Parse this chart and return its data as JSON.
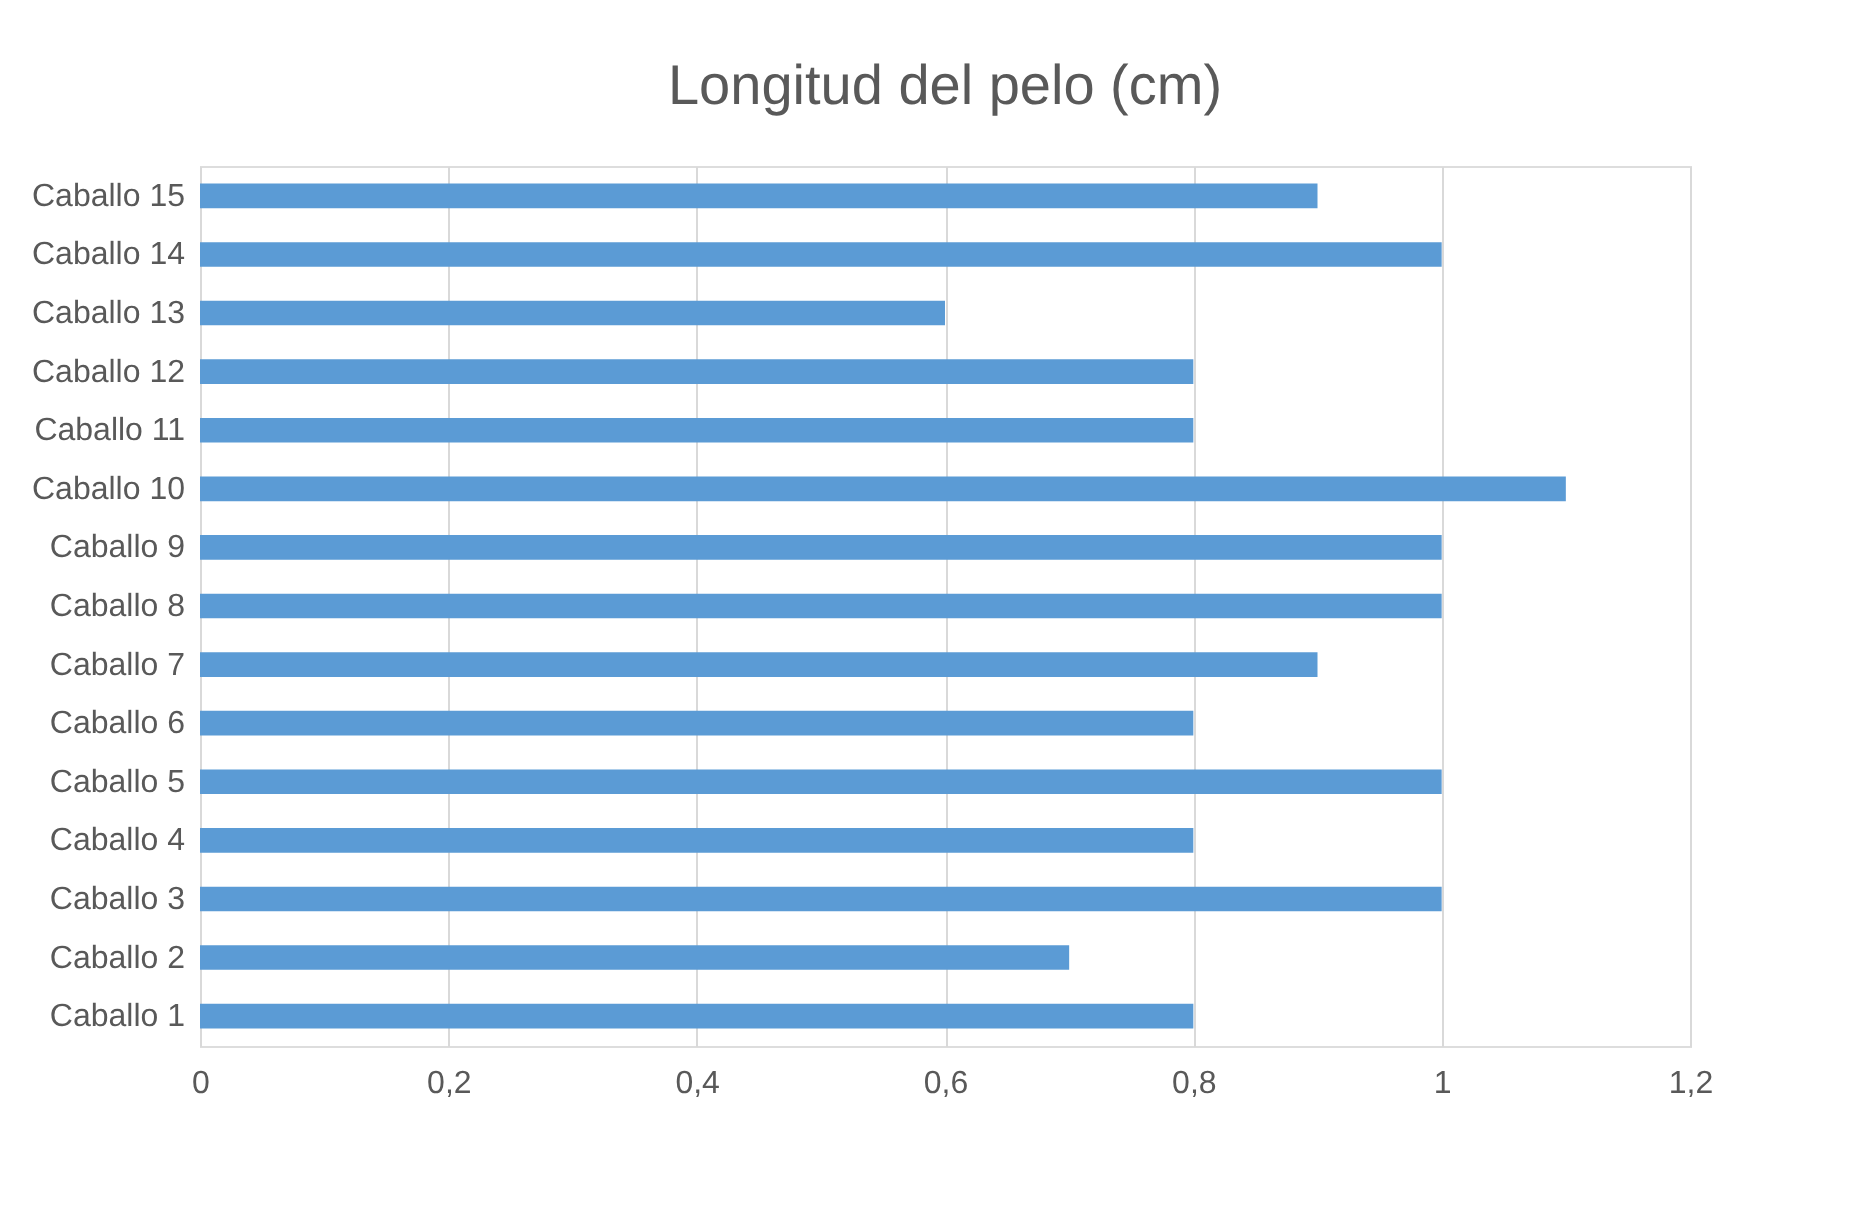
{
  "chart_data": {
    "type": "bar",
    "orientation": "horizontal",
    "title": "Longitud del pelo (cm)",
    "categories": [
      "Caballo 15",
      "Caballo 14",
      "Caballo 13",
      "Caballo 12",
      "Caballo 11",
      "Caballo 10",
      "Caballo 9",
      "Caballo 8",
      "Caballo 7",
      "Caballo 6",
      "Caballo 5",
      "Caballo 4",
      "Caballo 3",
      "Caballo 2",
      "Caballo 1"
    ],
    "values": [
      0.9,
      1,
      0.6,
      0.8,
      0.8,
      1.1,
      1,
      1,
      0.9,
      0.8,
      1,
      0.8,
      1,
      0.7,
      0.8
    ],
    "color": "#5b9bd5",
    "xlim": [
      0,
      1.2
    ],
    "xticks": [
      0,
      {
        "value": 0.2,
        "label": "0,2"
      },
      {
        "value": 0.4,
        "label": "0,4"
      },
      {
        "value": 0.6,
        "label": "0,6"
      },
      {
        "value": 0.8,
        "label": "0,8"
      },
      1,
      {
        "value": 1.2,
        "label": "1,2"
      }
    ],
    "grid": "x"
  }
}
